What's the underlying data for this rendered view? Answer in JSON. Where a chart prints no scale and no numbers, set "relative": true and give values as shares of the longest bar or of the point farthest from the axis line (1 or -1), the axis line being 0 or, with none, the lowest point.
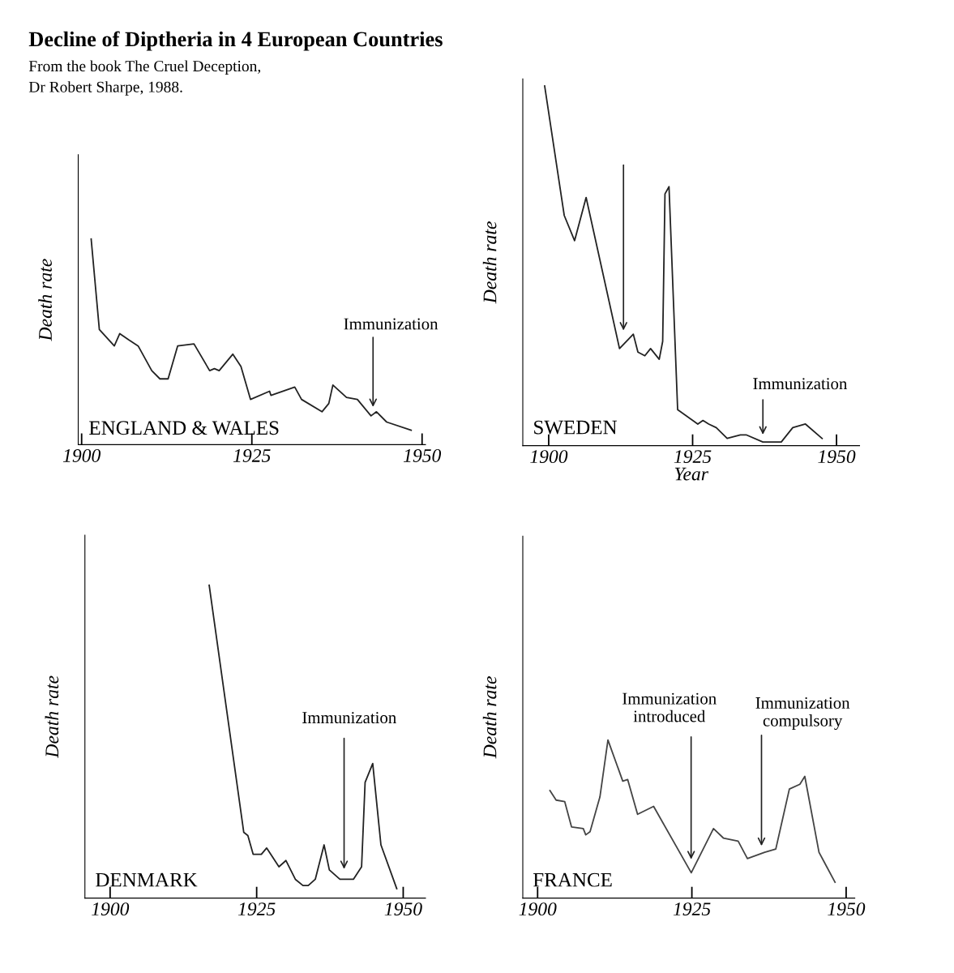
{
  "chart_data": [
    {
      "type": "line",
      "title": "Decline of Diptheria in 4 European Countries",
      "subtitle": "From the book The Cruel Deception,\nDr Robert Sharpe, 1988.",
      "ylabel": "Death rate",
      "relative": true,
      "xlim": [
        1899.5,
        1950.5
      ],
      "xticks": [
        1900,
        1925,
        1950
      ],
      "grid": false,
      "legend": false,
      "marker": "none",
      "line_style": "solid",
      "series": [
        {
          "color": "#222222",
          "x": [
            1901.4,
            1902.6,
            1904.8,
            1905.6,
            1906.9,
            1908.3,
            1910.3,
            1911.5,
            1912.7,
            1914.1,
            1916.5,
            1918.8,
            1919.5,
            1920.2,
            1922.2,
            1923.4,
            1924.8,
            1927.6,
            1927.8,
            1931.3,
            1932.3,
            1935.3,
            1936.3,
            1936.9,
            1938.9,
            1940.5,
            1942.5,
            1943.3,
            1944.8,
            1948.4
          ],
          "values": [
            1.0,
            0.56,
            0.48,
            0.54,
            0.51,
            0.48,
            0.36,
            0.32,
            0.32,
            0.48,
            0.49,
            0.36,
            0.37,
            0.36,
            0.44,
            0.38,
            0.22,
            0.26,
            0.24,
            0.28,
            0.22,
            0.16,
            0.2,
            0.29,
            0.23,
            0.22,
            0.14,
            0.16,
            0.11,
            0.07
          ]
        }
      ],
      "annotations": [
        "ENGLAND & WALES",
        "Immunization"
      ]
    },
    {
      "type": "line",
      "ylabel": "Death rate",
      "xlabel": "Year",
      "relative": true,
      "xlim": [
        1895.5,
        1954
      ],
      "xticks": [
        1900,
        1925,
        1950
      ],
      "grid": false,
      "legend": false,
      "marker": "none",
      "line_style": "solid",
      "series": [
        {
          "color": "#222222",
          "x": [
            1899.3,
            1902.7,
            1904.5,
            1906.5,
            1912.3,
            1914.7,
            1915.5,
            1916.7,
            1917.7,
            1919.2,
            1919.8,
            1920.2,
            1920.9,
            1922.4,
            1925.9,
            1926.8,
            1927.8,
            1929.1,
            1931.0,
            1933.3,
            1934.3,
            1937.2,
            1940.4,
            1942.4,
            1944.6,
            1947.5
          ],
          "values": [
            1.0,
            0.64,
            0.57,
            0.69,
            0.27,
            0.31,
            0.26,
            0.25,
            0.27,
            0.24,
            0.29,
            0.7,
            0.72,
            0.1,
            0.06,
            0.07,
            0.06,
            0.05,
            0.02,
            0.03,
            0.03,
            0.01,
            0.01,
            0.05,
            0.06,
            0.02
          ]
        }
      ],
      "annotations": [
        "SWEDEN",
        "Immunization"
      ]
    },
    {
      "type": "line",
      "ylabel": "Death rate",
      "relative": true,
      "xlim": [
        1895.7,
        1953.8
      ],
      "xticks": [
        1900,
        1925,
        1950
      ],
      "grid": false,
      "legend": false,
      "marker": "none",
      "line_style": "solid",
      "series": [
        {
          "color": "#222222",
          "x": [
            1916.9,
            1922.8,
            1923.5,
            1924.4,
            1925.8,
            1926.7,
            1928.8,
            1930.0,
            1931.6,
            1932.9,
            1933.8,
            1935.0,
            1936.5,
            1937.4,
            1939.2,
            1941.5,
            1942.9,
            1943.5,
            1944.8,
            1946.2,
            1948.9
          ],
          "values": [
            1.0,
            0.21,
            0.2,
            0.14,
            0.14,
            0.16,
            0.1,
            0.12,
            0.06,
            0.04,
            0.04,
            0.06,
            0.17,
            0.09,
            0.06,
            0.06,
            0.1,
            0.37,
            0.43,
            0.17,
            0.03
          ]
        }
      ],
      "annotations": [
        "DENMARK",
        "Immunization"
      ]
    },
    {
      "type": "line",
      "ylabel": "Death rate",
      "relative": true,
      "xlim": [
        1897.6,
        1951.4
      ],
      "xticks": [
        1900,
        1925,
        1950
      ],
      "grid": false,
      "legend": false,
      "marker": "none",
      "line_style": "solid",
      "series": [
        {
          "color": "#444444",
          "x": [
            1902.0,
            1903.0,
            1904.4,
            1905.5,
            1907.4,
            1907.8,
            1908.5,
            1910.1,
            1911.4,
            1913.8,
            1914.6,
            1916.2,
            1918.8,
            1924.9,
            1928.5,
            1930.1,
            1932.5,
            1934.0,
            1936.8,
            1938.6,
            1940.8,
            1942.5,
            1943.3,
            1945.6,
            1948.2
          ],
          "values": [
            0.68,
            0.62,
            0.61,
            0.45,
            0.44,
            0.4,
            0.42,
            0.64,
            1.0,
            0.74,
            0.75,
            0.53,
            0.58,
            0.16,
            0.44,
            0.38,
            0.36,
            0.25,
            0.29,
            0.31,
            0.69,
            0.72,
            0.77,
            0.29,
            0.1
          ]
        }
      ],
      "annotations": [
        "FRANCE",
        "Immunization\nintroduced",
        "Immunization\ncompulsory"
      ]
    }
  ]
}
